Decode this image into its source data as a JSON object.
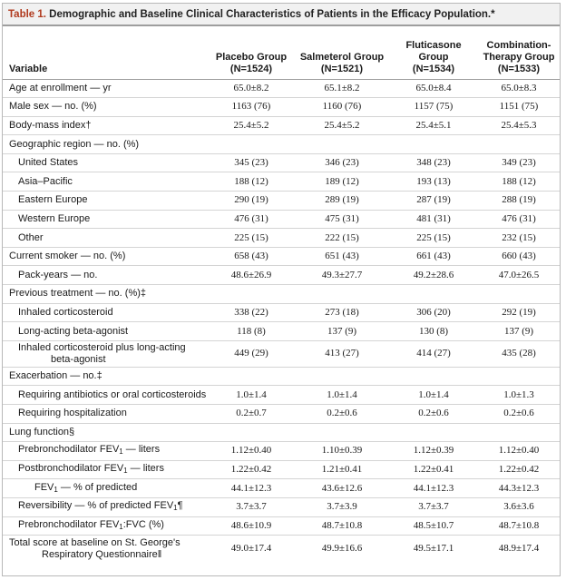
{
  "title": {
    "label": "Table 1.",
    "text": "Demographic and Baseline Clinical Characteristics of Patients in the Efficacy Population.*"
  },
  "header": {
    "variable": "Variable",
    "columns": [
      {
        "line1": "Placebo Group",
        "line2": "(N=1524)"
      },
      {
        "line1": "Salmeterol Group",
        "line2": "(N=1521)"
      },
      {
        "line1": "Fluticasone Group",
        "line2": "(N=1534)"
      },
      {
        "line1": "Combination-",
        "line1b": "Therapy Group",
        "line2": "(N=1533)"
      }
    ]
  },
  "rows": [
    {
      "label": "Age at enrollment — yr",
      "indent": 0,
      "values": [
        "65.0±8.2",
        "65.1±8.2",
        "65.0±8.4",
        "65.0±8.3"
      ]
    },
    {
      "label": "Male sex — no. (%)",
      "indent": 0,
      "values": [
        "1163 (76)",
        "1160 (76)",
        "1157 (75)",
        "1151 (75)"
      ]
    },
    {
      "label": "Body-mass index†",
      "indent": 0,
      "values": [
        "25.4±5.2",
        "25.4±5.2",
        "25.4±5.1",
        "25.4±5.3"
      ]
    },
    {
      "label": "Geographic region — no. (%)",
      "indent": 0,
      "values": [
        "",
        "",
        "",
        ""
      ]
    },
    {
      "label": "United States",
      "indent": 1,
      "values": [
        "345 (23)",
        "346 (23)",
        "348 (23)",
        "349 (23)"
      ]
    },
    {
      "label": "Asia–Pacific",
      "indent": 1,
      "values": [
        "188 (12)",
        "189 (12)",
        "193 (13)",
        "188 (12)"
      ]
    },
    {
      "label": "Eastern Europe",
      "indent": 1,
      "values": [
        "290 (19)",
        "289 (19)",
        "287 (19)",
        "288 (19)"
      ]
    },
    {
      "label": "Western Europe",
      "indent": 1,
      "values": [
        "476 (31)",
        "475 (31)",
        "481 (31)",
        "476 (31)"
      ]
    },
    {
      "label": "Other",
      "indent": 1,
      "values": [
        "225 (15)",
        "222 (15)",
        "225 (15)",
        "232 (15)"
      ]
    },
    {
      "label": "Current smoker — no. (%)",
      "indent": 0,
      "values": [
        "658 (43)",
        "651 (43)",
        "661 (43)",
        "660 (43)"
      ]
    },
    {
      "label": "Pack-years — no.",
      "indent": 1,
      "values": [
        "48.6±26.9",
        "49.3±27.7",
        "49.2±28.6",
        "47.0±26.5"
      ]
    },
    {
      "label": "Previous treatment — no. (%)‡",
      "indent": 0,
      "values": [
        "",
        "",
        "",
        ""
      ]
    },
    {
      "label": "Inhaled corticosteroid",
      "indent": 1,
      "values": [
        "338 (22)",
        "273 (18)",
        "306 (20)",
        "292 (19)"
      ]
    },
    {
      "label": "Long-acting beta-agonist",
      "indent": 1,
      "values": [
        "118 (8)",
        "137 (9)",
        "130 (8)",
        "137 (9)"
      ]
    },
    {
      "label": "Inhaled corticosteroid plus long-acting",
      "label2": "beta-agonist",
      "indent": 1,
      "values": [
        "449 (29)",
        "413 (27)",
        "414 (27)",
        "435 (28)"
      ]
    },
    {
      "label": "Exacerbation — no.‡",
      "indent": 0,
      "values": [
        "",
        "",
        "",
        ""
      ]
    },
    {
      "label": "Requiring antibiotics or oral corticosteroids",
      "indent": 1,
      "values": [
        "1.0±1.4",
        "1.0±1.4",
        "1.0±1.4",
        "1.0±1.3"
      ]
    },
    {
      "label": "Requiring hospitalization",
      "indent": 1,
      "values": [
        "0.2±0.7",
        "0.2±0.6",
        "0.2±0.6",
        "0.2±0.6"
      ]
    },
    {
      "label": "Lung function§",
      "indent": 0,
      "values": [
        "",
        "",
        "",
        ""
      ]
    },
    {
      "label": "Prebronchodilator FEV",
      "sub": "1",
      "label_after": " — liters",
      "indent": 1,
      "values": [
        "1.12±0.40",
        "1.10±0.39",
        "1.12±0.39",
        "1.12±0.40"
      ]
    },
    {
      "label": "Postbronchodilator FEV",
      "sub": "1",
      "label_after": " — liters",
      "indent": 1,
      "values": [
        "1.22±0.42",
        "1.21±0.41",
        "1.22±0.41",
        "1.22±0.42"
      ]
    },
    {
      "label": "FEV",
      "sub": "1",
      "label_after": " — % of predicted",
      "indent": 2,
      "values": [
        "44.1±12.3",
        "43.6±12.6",
        "44.1±12.3",
        "44.3±12.3"
      ]
    },
    {
      "label": "Reversibility — % of predicted FEV",
      "sub": "1",
      "label_after": "¶",
      "indent": 1,
      "values": [
        "3.7±3.7",
        "3.7±3.9",
        "3.7±3.7",
        "3.6±3.6"
      ]
    },
    {
      "label": "Prebronchodilator FEV",
      "sub": "1",
      "label_after": ":FVC (%)",
      "indent": 1,
      "values": [
        "48.6±10.9",
        "48.7±10.8",
        "48.5±10.7",
        "48.7±10.8"
      ]
    },
    {
      "label": "Total score at baseline on St. George's",
      "label2": "Respiratory Questionnaire‖",
      "indent": 0,
      "values": [
        "49.0±17.4",
        "49.9±16.6",
        "49.5±17.1",
        "48.9±17.4"
      ]
    }
  ]
}
